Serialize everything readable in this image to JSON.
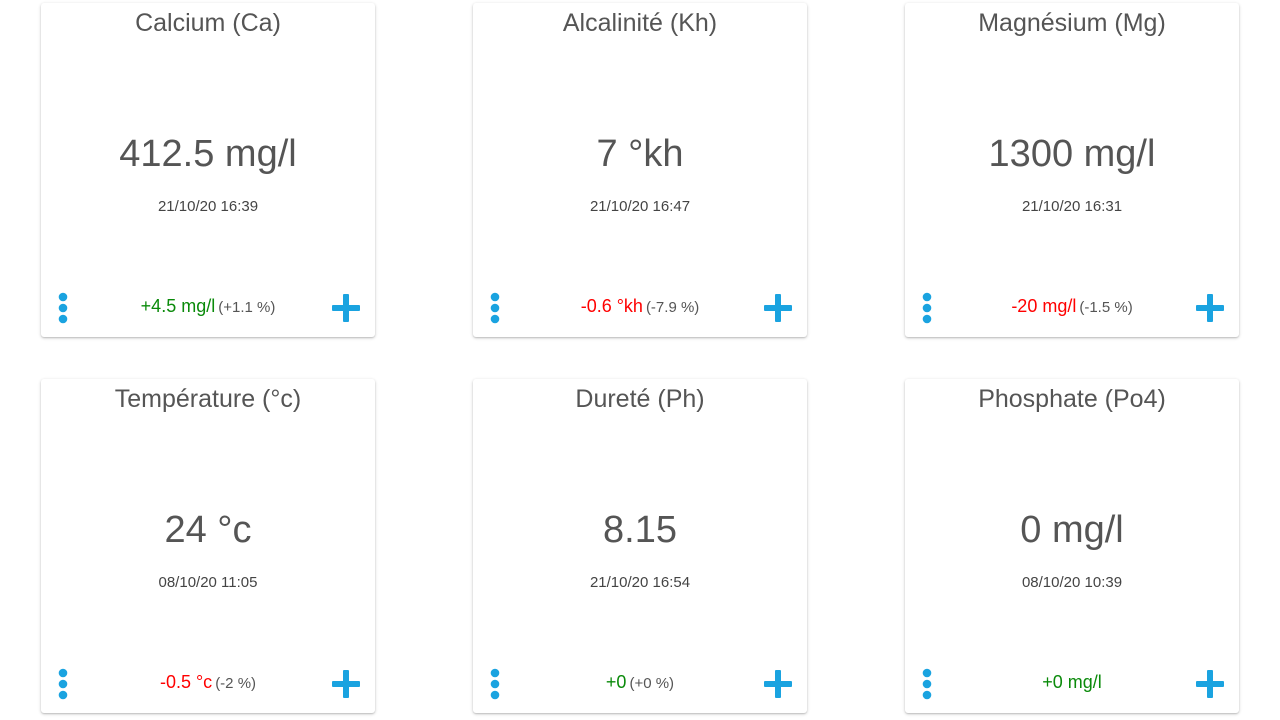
{
  "colors": {
    "accent": "#1aa3e0",
    "positive": "#0a8a0a",
    "negative": "#ff0000",
    "text": "#555555"
  },
  "cards": [
    {
      "title": "Calcium (Ca)",
      "value": "412.5 mg/l",
      "date": "21/10/20 16:39",
      "delta": "+4.5 mg/l",
      "delta_pct": "(+1.1 %)",
      "trend": "positive",
      "menu_icon": "vertical-dots-icon",
      "add_icon": "plus-icon"
    },
    {
      "title": "Alcalinité (Kh)",
      "value": "7 °kh",
      "date": "21/10/20 16:47",
      "delta": "-0.6 °kh",
      "delta_pct": "(-7.9 %)",
      "trend": "negative",
      "menu_icon": "vertical-dots-icon",
      "add_icon": "plus-icon"
    },
    {
      "title": "Magnésium (Mg)",
      "value": "1300 mg/l",
      "date": "21/10/20 16:31",
      "delta": "-20 mg/l",
      "delta_pct": "(-1.5 %)",
      "trend": "negative",
      "menu_icon": "vertical-dots-icon",
      "add_icon": "plus-icon"
    },
    {
      "title": "Température (°c)",
      "value": "24 °c",
      "date": "08/10/20 11:05",
      "delta": "-0.5 °c",
      "delta_pct": "(-2 %)",
      "trend": "negative",
      "menu_icon": "vertical-dots-icon",
      "add_icon": "plus-icon"
    },
    {
      "title": "Dureté (Ph)",
      "value": "8.15",
      "date": "21/10/20 16:54",
      "delta": "+0",
      "delta_pct": "(+0 %)",
      "trend": "positive",
      "menu_icon": "vertical-dots-icon",
      "add_icon": "plus-icon"
    },
    {
      "title": "Phosphate (Po4)",
      "value": "0 mg/l",
      "date": "08/10/20 10:39",
      "delta": "+0 mg/l",
      "delta_pct": "",
      "trend": "positive",
      "menu_icon": "vertical-dots-icon",
      "add_icon": "plus-icon"
    }
  ]
}
